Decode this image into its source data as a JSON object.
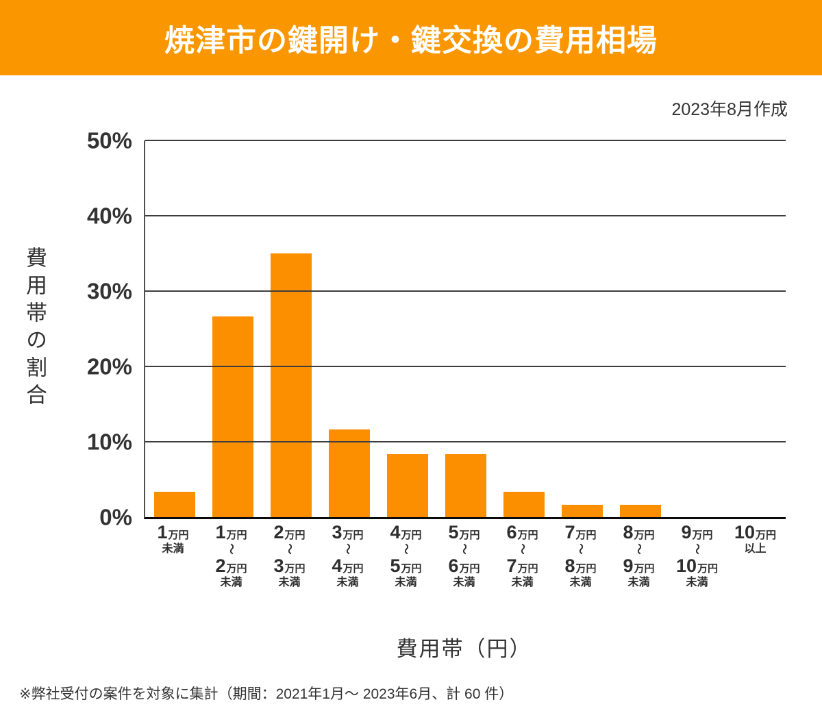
{
  "banner": {
    "title": "焼津市の鍵開け・鍵交換の費用相場",
    "bg_color": "#FA9600",
    "text_color": "#FFFFFF"
  },
  "meta": {
    "created": "2023年8月作成"
  },
  "chart_data": {
    "type": "bar",
    "title": "焼津市の鍵開け・鍵交換の費用相場",
    "xlabel": "費用帯（円）",
    "ylabel": "費用帯の割合",
    "ylim": [
      0,
      50
    ],
    "ytick_labels": [
      "50%",
      "40%",
      "30%",
      "20%",
      "10%",
      "0%"
    ],
    "grid": true,
    "legend": false,
    "bar_color": "#FB8F00",
    "categories": [
      "1万円\n未満",
      "1万円\n〜\n2万円\n未満",
      "2万円\n〜\n3万円\n未満",
      "3万円\n〜\n4万円\n未満",
      "4万円\n〜\n5万円\n未満",
      "5万円\n〜\n6万円\n未満",
      "6万円\n〜\n7万円\n未満",
      "7万円\n〜\n8万円\n未満",
      "8万円\n〜\n9万円\n未満",
      "9万円\n〜\n10万円\n未満",
      "10万円\n以上"
    ],
    "values": [
      3.33,
      26.67,
      35,
      11.67,
      8.33,
      8.33,
      3.33,
      1.67,
      1.67,
      0,
      0
    ]
  },
  "footer": {
    "note": "※弊社受付の案件を対象に集計（期間：2021年1月～ 2023年6月、計 60 件）"
  }
}
